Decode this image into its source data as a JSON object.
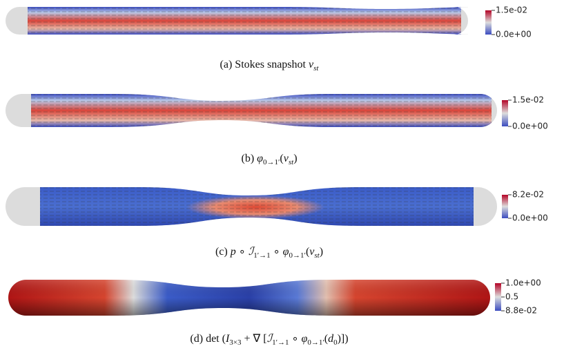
{
  "panels": [
    {
      "caption": [
        {
          "text": "(a) Stokes snapshot "
        },
        {
          "text": "v",
          "math": true
        },
        {
          "text": "st",
          "sub": true,
          "math": true
        }
      ],
      "colorbar": {
        "labels": [
          "1.5e-02",
          "0.0e+00"
        ]
      }
    },
    {
      "caption": [
        {
          "text": "(b) "
        },
        {
          "text": "φ",
          "math": true
        },
        {
          "text": "0→1′",
          "sub": true
        },
        {
          "text": "("
        },
        {
          "text": "v",
          "math": true
        },
        {
          "text": "st",
          "sub": true,
          "math": true
        },
        {
          "text": ")"
        }
      ],
      "colorbar": {
        "labels": [
          "1.5e-02",
          "0.0e+00"
        ]
      }
    },
    {
      "caption": [
        {
          "text": "(c) "
        },
        {
          "text": "p",
          "math": true
        },
        {
          "text": " ∘ "
        },
        {
          "text": "ℐ",
          "math": true
        },
        {
          "text": "1′→1",
          "sub": true
        },
        {
          "text": " ∘ "
        },
        {
          "text": "φ",
          "math": true
        },
        {
          "text": "0→1′",
          "sub": true
        },
        {
          "text": "("
        },
        {
          "text": "v",
          "math": true
        },
        {
          "text": "st",
          "sub": true,
          "math": true
        },
        {
          "text": ")"
        }
      ],
      "colorbar": {
        "labels": [
          "8.2e-02",
          "0.0e+00"
        ]
      }
    },
    {
      "caption": [
        {
          "text": "(d) det ("
        },
        {
          "text": "I",
          "math": true
        },
        {
          "text": "3×3",
          "sub": true
        },
        {
          "text": " + ∇ ["
        },
        {
          "text": "ℐ",
          "math": true
        },
        {
          "text": "1′→1",
          "sub": true
        },
        {
          "text": " ∘ "
        },
        {
          "text": "φ",
          "math": true
        },
        {
          "text": "0→1′",
          "sub": true
        },
        {
          "text": "("
        },
        {
          "text": "d",
          "math": true
        },
        {
          "text": "0",
          "sub": true
        },
        {
          "text": ")])"
        }
      ],
      "colorbar": {
        "labels": [
          "1.0e+00",
          "0.5",
          "8.8e-02"
        ]
      }
    }
  ]
}
